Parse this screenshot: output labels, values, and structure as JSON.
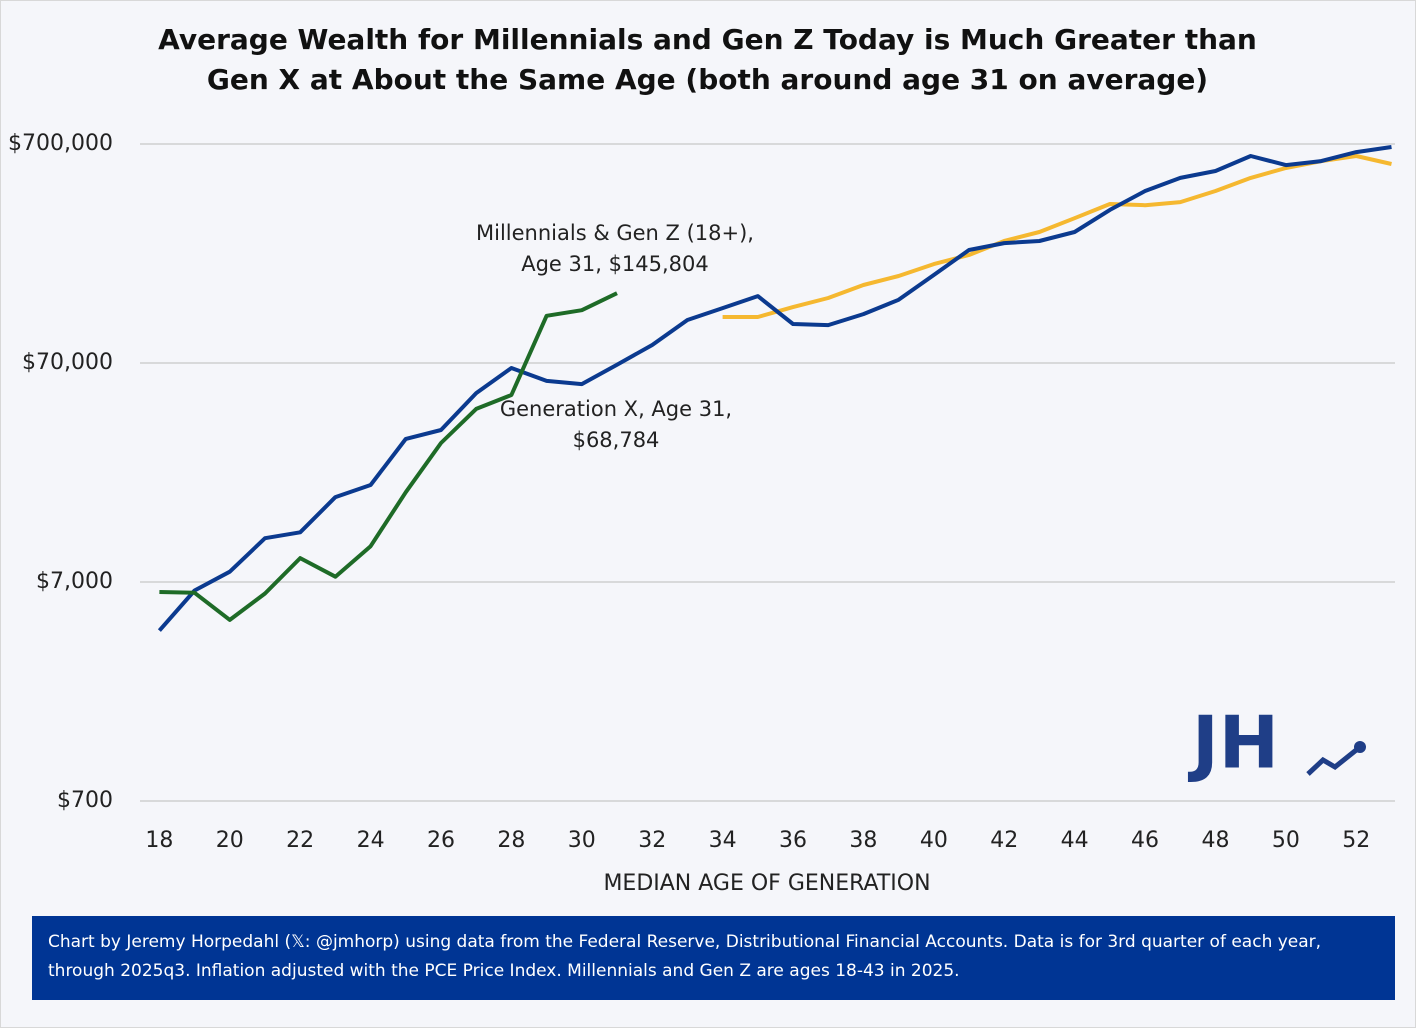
{
  "chart_data": {
    "type": "line",
    "title": "Average Wealth for Millennials and Gen Z Today is Much Greater than Gen X at About the Same Age (both around age 31 on average)",
    "x_label": "MEDIAN AGE OF GENERATION",
    "x": [
      18,
      19,
      20,
      21,
      22,
      23,
      24,
      25,
      26,
      27,
      28,
      29,
      30,
      31,
      32,
      33,
      34,
      35,
      36,
      37,
      38,
      39,
      40,
      41,
      42,
      43,
      44,
      45,
      46,
      47,
      48,
      49,
      50,
      51,
      52,
      53
    ],
    "xlim": [
      17.45,
      53.1
    ],
    "xticks": [
      18,
      20,
      22,
      24,
      26,
      28,
      30,
      32,
      34,
      36,
      38,
      40,
      42,
      44,
      46,
      48,
      50,
      52
    ],
    "ylim": [
      700,
      700000
    ],
    "log_y": true,
    "yticks": [
      {
        "value": 700,
        "label": "$700"
      },
      {
        "value": 7000,
        "label": "$7,000"
      },
      {
        "value": 70000,
        "label": "$70,000"
      },
      {
        "value": 700000,
        "label": "$700,000"
      }
    ],
    "grid": true,
    "series": [
      {
        "color": "#f5b830",
        "values": [
          null,
          null,
          null,
          null,
          null,
          null,
          null,
          null,
          null,
          null,
          null,
          null,
          null,
          null,
          null,
          null,
          113500,
          113500,
          126000,
          138600,
          159000,
          174700,
          198000,
          218000,
          252500,
          277500,
          321000,
          372600,
          368000,
          380000,
          427000,
          490000,
          544000,
          585000,
          617000,
          567000
        ]
      },
      {
        "color": "#0b3a8f",
        "values": [
          4200,
          6400,
          7800,
          11100,
          11800,
          17100,
          19400,
          31500,
          34600,
          51000,
          66400,
          58000,
          56100,
          68784,
          84600,
          110000,
          124700,
          141500,
          105500,
          104300,
          117000,
          136000,
          176600,
          229600,
          247000,
          252500,
          277500,
          350000,
          427000,
          490000,
          527000,
          617000,
          561000,
          585000,
          643000,
          678000
        ]
      },
      {
        "color": "#1e6b27",
        "values": [
          6300,
          6250,
          4700,
          6200,
          9000,
          7400,
          10200,
          18000,
          30200,
          43200,
          50000,
          115000,
          122000,
          145804,
          null,
          null,
          null,
          null,
          null,
          null,
          null,
          null,
          null,
          null,
          null,
          null,
          null,
          null,
          null,
          null,
          null,
          null,
          null,
          null,
          null,
          null
        ]
      }
    ],
    "annotations": [
      {
        "text": [
          "Millennials & Gen Z (18+),",
          "Age 31, $145,804"
        ]
      },
      {
        "text": [
          "Generation X, Age 31,",
          "$68,784"
        ]
      }
    ],
    "logo": "JH",
    "footnote": "Chart by Jeremy Horpedahl (𝕏: @jmhorp) using data from the Federal Reserve, Distributional Financial Accounts. Data is for 3rd quarter of each year, through 2025q3.  Inflation adjusted with the PCE Price Index. Millennials and Gen Z are ages 18-43 in 2025."
  }
}
